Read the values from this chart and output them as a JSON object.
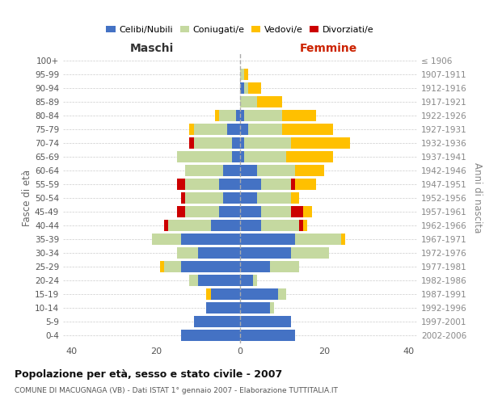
{
  "age_groups": [
    "0-4",
    "5-9",
    "10-14",
    "15-19",
    "20-24",
    "25-29",
    "30-34",
    "35-39",
    "40-44",
    "45-49",
    "50-54",
    "55-59",
    "60-64",
    "65-69",
    "70-74",
    "75-79",
    "80-84",
    "85-89",
    "90-94",
    "95-99",
    "100+"
  ],
  "birth_years": [
    "2002-2006",
    "1997-2001",
    "1992-1996",
    "1987-1991",
    "1982-1986",
    "1977-1981",
    "1972-1976",
    "1967-1971",
    "1962-1966",
    "1957-1961",
    "1952-1956",
    "1947-1951",
    "1942-1946",
    "1937-1941",
    "1932-1936",
    "1927-1931",
    "1922-1926",
    "1917-1921",
    "1912-1916",
    "1907-1911",
    "≤ 1906"
  ],
  "male_celibi": [
    14,
    11,
    8,
    7,
    10,
    14,
    10,
    14,
    7,
    5,
    4,
    5,
    4,
    2,
    2,
    3,
    1,
    0,
    0,
    0,
    0
  ],
  "male_coniugati": [
    0,
    0,
    0,
    0,
    2,
    4,
    5,
    7,
    10,
    8,
    9,
    8,
    9,
    13,
    9,
    8,
    4,
    0,
    0,
    0,
    0
  ],
  "male_vedovi": [
    0,
    0,
    0,
    1,
    0,
    1,
    0,
    0,
    0,
    0,
    0,
    0,
    0,
    0,
    0,
    1,
    1,
    0,
    0,
    0,
    0
  ],
  "male_divorziati": [
    0,
    0,
    0,
    0,
    0,
    0,
    0,
    0,
    1,
    2,
    1,
    2,
    0,
    0,
    1,
    0,
    0,
    0,
    0,
    0,
    0
  ],
  "female_nubili": [
    13,
    12,
    7,
    9,
    3,
    7,
    12,
    13,
    5,
    5,
    4,
    5,
    4,
    1,
    1,
    2,
    1,
    0,
    1,
    0,
    0
  ],
  "female_coniugate": [
    0,
    0,
    1,
    2,
    1,
    7,
    9,
    11,
    9,
    7,
    8,
    7,
    9,
    10,
    11,
    8,
    9,
    4,
    1,
    1,
    0
  ],
  "female_vedove": [
    0,
    0,
    0,
    0,
    0,
    0,
    0,
    1,
    1,
    2,
    2,
    5,
    7,
    11,
    14,
    12,
    8,
    6,
    3,
    1,
    0
  ],
  "female_divorziate": [
    0,
    0,
    0,
    0,
    0,
    0,
    0,
    0,
    1,
    3,
    0,
    1,
    0,
    0,
    0,
    0,
    0,
    0,
    0,
    0,
    0
  ],
  "color_celibi": "#4472c4",
  "color_coniugati": "#c5d9a0",
  "color_vedovi": "#ffc000",
  "color_divorziati": "#cc0000",
  "title": "Popolazione per età, sesso e stato civile - 2007",
  "subtitle": "COMUNE DI MACUGNAGA (VB) - Dati ISTAT 1° gennaio 2007 - Elaborazione TUTTITALIA.IT",
  "ylabel_left": "Fasce di età",
  "ylabel_right": "Anni di nascita",
  "xlim": 42,
  "bar_height": 0.82,
  "bg_color": "#ffffff",
  "grid_color": "#cccccc"
}
